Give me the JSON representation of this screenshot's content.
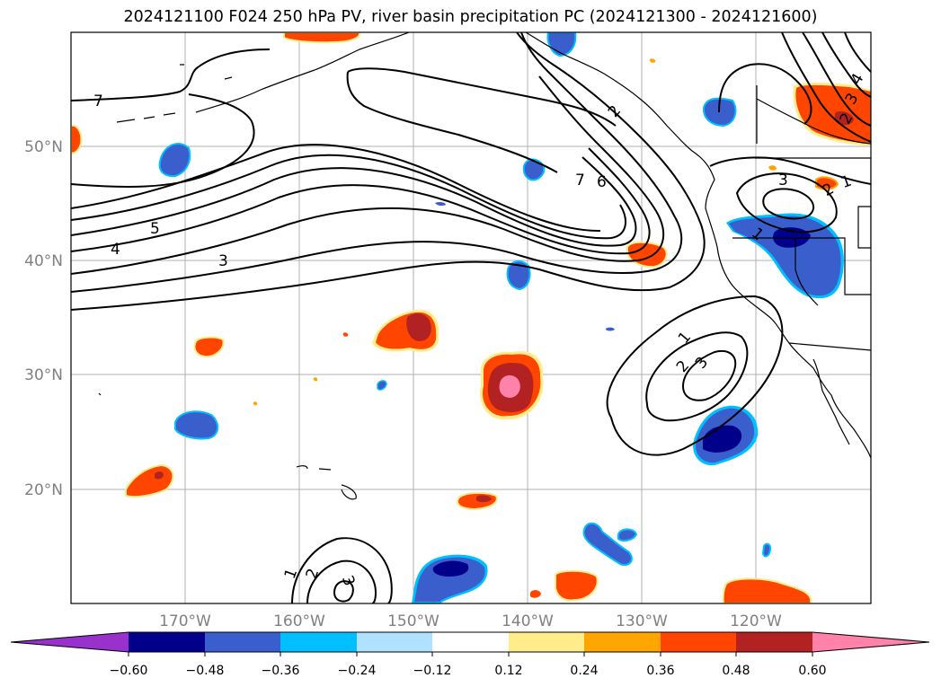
{
  "title": "2024121100 F024 250 hPa PV, river basin precipitation PC (2024121300 - 2024121600)",
  "latitude_labels": [
    "50°N",
    "40°N",
    "30°N",
    "20°N"
  ],
  "longitude_labels": [
    "170°W",
    "160°W",
    "150°W",
    "140°W",
    "130°W",
    "120°W"
  ],
  "colorbar": {
    "tick_labels": [
      "−0.60",
      "−0.48",
      "−0.36",
      "−0.24",
      "−0.12",
      "0.12",
      "0.24",
      "0.36",
      "0.48",
      "0.60"
    ],
    "colors": [
      "#9932CC",
      "#00008B",
      "#3A5FCD",
      "#00BFFF",
      "#B0E2FF",
      "#FFFFFF",
      "#FFEC8B",
      "#FFA500",
      "#FF4500",
      "#B22222",
      "#FF82AB"
    ]
  },
  "contour_labels": [
    "7",
    "5",
    "4",
    "3",
    "7",
    "6",
    "2",
    "1",
    "2",
    "3",
    "1",
    "2",
    "3",
    "1",
    "3",
    "2",
    "1",
    "2",
    "3",
    "4"
  ],
  "legend_title": "",
  "fill_colors": {
    "dark_blue": "#00008B",
    "blue": "#3A5FCD",
    "light_blue": "#00BFFF",
    "orange_red": "#FF4500",
    "red": "#B22222",
    "pink": "#FF82AB",
    "orange": "#FFA500",
    "yellow": "#FFEC8B"
  }
}
